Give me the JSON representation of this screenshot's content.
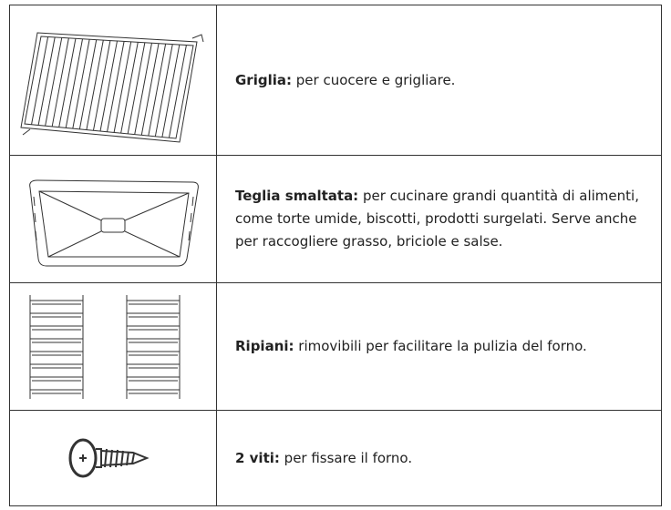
{
  "table": {
    "rows": [
      {
        "term": "Griglia:",
        "description": "per cuocere e grigliare."
      },
      {
        "term": "Teglia smaltata:",
        "description": "per cucinare grandi quantità di alimenti, come torte umide, biscotti, prodotti surgelati. Serve anche per raccogliere grasso, briciole e salse."
      },
      {
        "term": "Ripiani:",
        "description": "rimovibili per facilitare la pulizia del forno."
      },
      {
        "term": "2 viti:",
        "description": "per fissare il forno."
      }
    ]
  }
}
